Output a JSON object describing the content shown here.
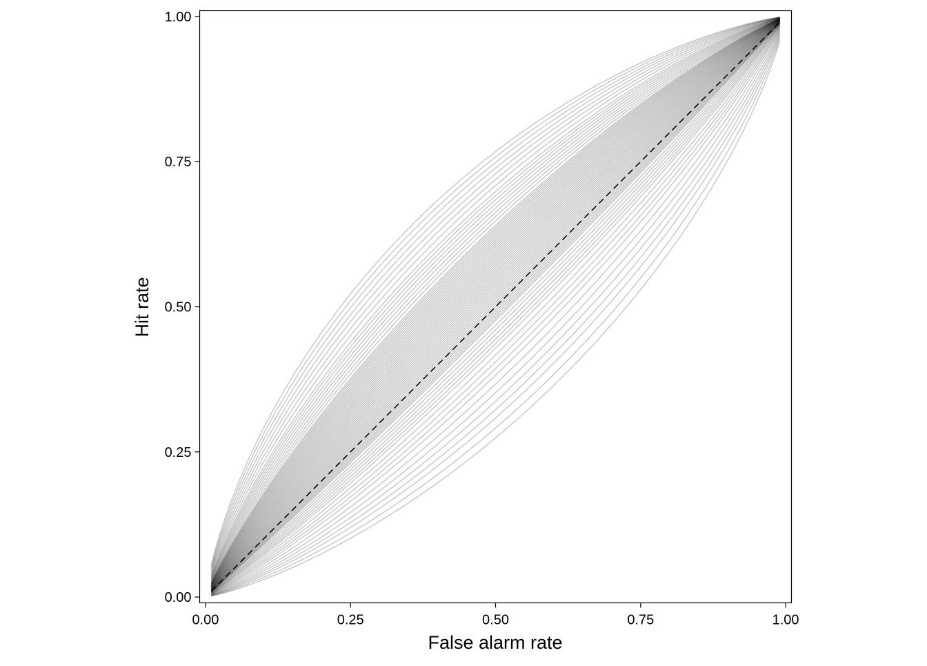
{
  "chart_data": {
    "type": "line",
    "title": "",
    "xlabel": "False alarm rate",
    "ylabel": "Hit rate",
    "xlim": [
      -0.01,
      1.01
    ],
    "ylim": [
      -0.01,
      1.01
    ],
    "x_ticks": [
      0.0,
      0.25,
      0.5,
      0.75,
      1.0
    ],
    "x_tick_labels": [
      "0.00",
      "0.25",
      "0.50",
      "0.75",
      "1.00"
    ],
    "y_ticks": [
      0.0,
      0.25,
      0.5,
      0.75,
      1.0
    ],
    "y_tick_labels": [
      "0.00",
      "0.25",
      "0.50",
      "0.75",
      "1.00"
    ],
    "grid": false,
    "legend": "none",
    "curve_family": "binormal ROC curves, hit = Phi(d' + Phi^-1(false alarm))",
    "x_range_of_curves": [
      0.01,
      0.99
    ],
    "curve_d_prime": [
      -0.6,
      -0.55,
      -0.5,
      -0.46,
      -0.42,
      -0.38,
      -0.34,
      -0.3,
      -0.27,
      -0.24,
      -0.21,
      -0.18,
      -0.16,
      -0.14,
      -0.12,
      -0.1,
      -0.08,
      -0.06,
      -0.05,
      -0.04,
      -0.03,
      -0.02,
      -0.01,
      0.0,
      0.01,
      0.02,
      0.03,
      0.04,
      0.05,
      0.06,
      0.07,
      0.08,
      0.09,
      0.1,
      0.11,
      0.12,
      0.13,
      0.14,
      0.15,
      0.16,
      0.17,
      0.18,
      0.19,
      0.2,
      0.21,
      0.22,
      0.23,
      0.24,
      0.25,
      0.26,
      0.27,
      0.28,
      0.29,
      0.3,
      0.31,
      0.32,
      0.33,
      0.34,
      0.35,
      0.36,
      0.38,
      0.4,
      0.42,
      0.44,
      0.46,
      0.48,
      0.5,
      0.52,
      0.55,
      0.58,
      0.61,
      0.64,
      0.67,
      0.7,
      0.73
    ],
    "curve_color": "#000000",
    "curve_opacity": 0.2,
    "reference_line": {
      "x": [
        0.01,
        0.99
      ],
      "y": [
        0.01,
        0.99
      ],
      "style": "dashed",
      "color": "#000000"
    }
  }
}
